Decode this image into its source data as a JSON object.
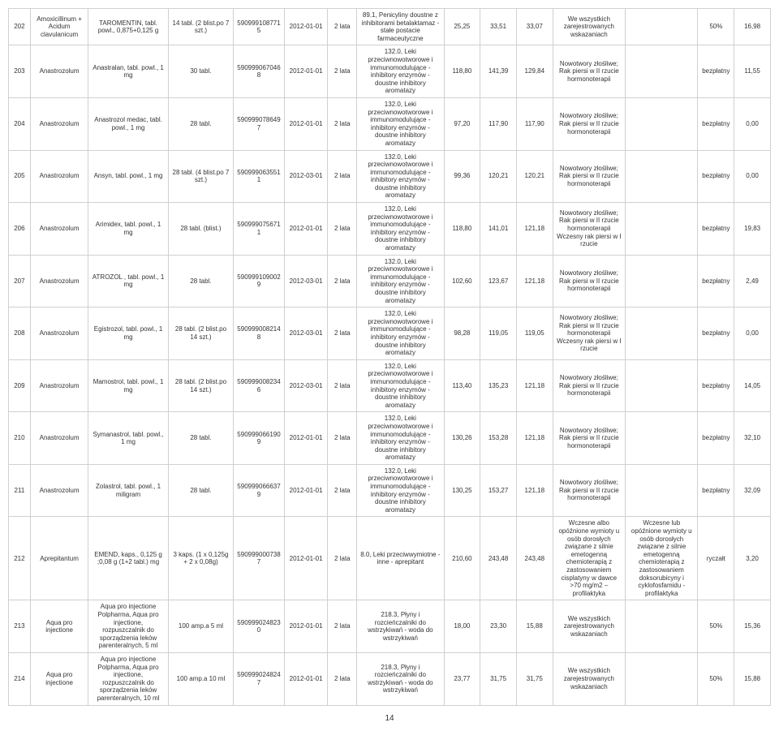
{
  "page_number": "14",
  "columns_count": 15,
  "rows": [
    {
      "cells": [
        "202",
        "Amoxicillinum + Acidum clavulanicum",
        "TAROMENTIN, tabl. powl., 0,875+0,125 g",
        "14 tabl. (2 blist.po 7 szt.)",
        "5909991087715",
        "2012-01-01",
        "2 lata",
        "89.1, Penicyliny doustne z inhibitorami betalaktamaz - stałe postacie farmaceutyczne",
        "25,25",
        "33,51",
        "33,07",
        "We wszystkich zarejestrowanych wskazaniach",
        "",
        "50%",
        "16,98"
      ]
    },
    {
      "cells": [
        "203",
        "Anastrozolum",
        "Anastralan, tabl. powl., 1 mg",
        "30 tabl.",
        "5909990670468",
        "2012-01-01",
        "2 lata",
        "132.0, Leki przeciwnowotworowe i immunomodulujące - inhibitory enzymów - doustne inhibitory aromatazy",
        "118,80",
        "141,39",
        "129,84",
        "Nowotwory złośliwe; Rak piersi w II rzucie hormonoterapii",
        "",
        "bezpłatny",
        "11,55"
      ]
    },
    {
      "cells": [
        "204",
        "Anastrozolum",
        "Anastrozol medac, tabl. powl., 1 mg",
        "28 tabl.",
        "5909990786497",
        "2012-01-01",
        "2 lata",
        "132.0, Leki przeciwnowotworowe i immunomodulujące - inhibitory enzymów - doustne inhibitory aromatazy",
        "97,20",
        "117,90",
        "117,90",
        "Nowotwory złośliwe; Rak piersi w II rzucie hormonoterapii",
        "",
        "bezpłatny",
        "0,00"
      ]
    },
    {
      "cells": [
        "205",
        "Anastrozolum",
        "Ansyn, tabl. powl., 1 mg",
        "28 tabl. (4 blist.po 7 szt.)",
        "5909990635511",
        "2012-03-01",
        "2 lata",
        "132.0, Leki przeciwnowotworowe i immunomodulujące - inhibitory enzymów - doustne inhibitory aromatazy",
        "99,36",
        "120,21",
        "120,21",
        "Nowotwory złośliwe; Rak piersi w II rzucie hormonoterapii",
        "",
        "bezpłatny",
        "0,00"
      ]
    },
    {
      "cells": [
        "206",
        "Anastrozolum",
        "Arimidex, tabl. powl., 1 mg",
        "28 tabl. (blist.)",
        "5909990756711",
        "2012-01-01",
        "2 lata",
        "132.0, Leki przeciwnowotworowe i immunomodulujące - inhibitory enzymów - doustne inhibitory aromatazy",
        "118,80",
        "141,01",
        "121,18",
        "Nowotwory złośliwe; Rak piersi w II rzucie hormonoterapii Wczesny rak piersi w I rzucie",
        "",
        "bezpłatny",
        "19,83"
      ]
    },
    {
      "cells": [
        "207",
        "Anastrozolum",
        "ATROZOL , tabl. powl., 1 mg",
        "28 tabl.",
        "5909991090029",
        "2012-03-01",
        "2 lata",
        "132.0, Leki przeciwnowotworowe i immunomodulujące - inhibitory enzymów - doustne inhibitory aromatazy",
        "102,60",
        "123,67",
        "121,18",
        "Nowotwory złośliwe; Rak piersi w II rzucie hormonoterapii",
        "",
        "bezpłatny",
        "2,49"
      ]
    },
    {
      "cells": [
        "208",
        "Anastrozolum",
        "Egistrozol, tabl. powl., 1 mg",
        "28 tabl. (2 blist.po 14 szt.)",
        "5909990082148",
        "2012-03-01",
        "2 lata",
        "132.0, Leki przeciwnowotworowe i immunomodulujące - inhibitory enzymów - doustne inhibitory aromatazy",
        "98,28",
        "119,05",
        "119,05",
        "Nowotwory złośliwe; Rak piersi w II rzucie hormonoterapii Wczesny rak piersi w I rzucie",
        "",
        "bezpłatny",
        "0,00"
      ]
    },
    {
      "cells": [
        "209",
        "Anastrozolum",
        "Mamostrol, tabl. powl., 1 mg",
        "28 tabl. (2 blist.po 14 szt.)",
        "5909990082346",
        "2012-03-01",
        "2 lata",
        "132.0, Leki przeciwnowotworowe i immunomodulujące - inhibitory enzymów - doustne inhibitory aromatazy",
        "113,40",
        "135,23",
        "121,18",
        "Nowotwory złośliwe; Rak piersi w II rzucie hormonoterapii",
        "",
        "bezpłatny",
        "14,05"
      ]
    },
    {
      "cells": [
        "210",
        "Anastrozolum",
        "Symanastrol, tabl. powl., 1 mg",
        "28 tabl.",
        "5909990661909",
        "2012-01-01",
        "2 lata",
        "132.0, Leki przeciwnowotworowe i immunomodulujące - inhibitory enzymów - doustne inhibitory aromatazy",
        "130,26",
        "153,28",
        "121,18",
        "Nowotwory złośliwe; Rak piersi w II rzucie hormonoterapii",
        "",
        "bezpłatny",
        "32,10"
      ]
    },
    {
      "cells": [
        "211",
        "Anastrozolum",
        "Zolastrol, tabl. powl., 1 miligram",
        "28 tabl.",
        "5909990666379",
        "2012-01-01",
        "2 lata",
        "132.0, Leki przeciwnowotworowe i immunomodulujące - inhibitory enzymów - doustne inhibitory aromatazy",
        "130,25",
        "153,27",
        "121,18",
        "Nowotwory złośliwe; Rak piersi w II rzucie hormonoterapii",
        "",
        "bezpłatny",
        "32,09"
      ]
    },
    {
      "cells": [
        "212",
        "Aprepitantum",
        "EMEND, kaps., 0,125 g ;0,08 g (1+2 tabl.) mg",
        "3 kaps. (1 x 0,125g + 2 x 0,08g)",
        "5909990007387",
        "2012-01-01",
        "2 lata",
        "8.0, Leki przeciwwymiotne - inne - aprepitant",
        "210,60",
        "243,48",
        "243,48",
        "Wczesne albo opóźnione wymioty u osób dorosłych związane z silnie emetogenną chemioterapią z zastosowaniem cisplatyny w dawce >70 mg/m2 – profilaktyka",
        "Wczesne lub opóźnione wymioty u osób dorosłych związane z silnie emetogenną chemioterapią z zastosowaniem doksorubicyny i cyklofosfamidu - profilaktyka",
        "ryczałt",
        "3,20"
      ]
    },
    {
      "cells": [
        "213",
        "Aqua pro injectione",
        "Aqua pro injectione Polpharma, Aqua pro injectione, rozpuszczalnik do sporządzenia leków parenteralnych, 5 ml",
        "100 amp.a 5 ml",
        "5909990248230",
        "2012-01-01",
        "2 lata",
        "218.3, Płyny i rozcieńczalniki do wstrzykiwań - woda do wstrzykiwań",
        "18,00",
        "23,30",
        "15,88",
        "We wszystkich zarejestrowanych wskazaniach",
        "",
        "50%",
        "15,36"
      ]
    },
    {
      "cells": [
        "214",
        "Aqua pro injectione",
        "Aqua pro injectione Polpharma, Aqua pro injectione, rozpuszczalnik do sporządzenia leków parenteralnych, 10 ml",
        "100 amp.a 10 ml",
        "5909990248247",
        "2012-01-01",
        "2 lata",
        "218.3, Płyny i rozcieńczalniki do wstrzykiwań - woda do wstrzykiwań",
        "23,77",
        "31,75",
        "31,75",
        "We wszystkich zarejestrowanych wskazaniach",
        "",
        "50%",
        "15,88"
      ]
    }
  ]
}
